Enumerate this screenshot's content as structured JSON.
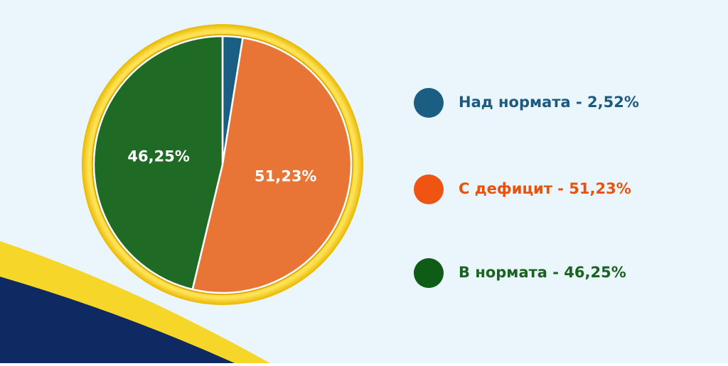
{
  "chart_data": {
    "type": "pie",
    "categories": [
      "Над нормата - 2,52%",
      "С дефицит - 51,23%",
      "В нормата - 46,25%"
    ],
    "values": [
      2.52,
      51.23,
      46.25
    ],
    "value_labels": [
      null,
      "51,23%",
      "46,25%"
    ],
    "colors": [
      "#1b5e84",
      "#e87535",
      "#1f6b26"
    ],
    "legend_colors": [
      "#1b5e84",
      "#ef5412",
      "#0f5c17"
    ],
    "legend_text_colors": [
      "#1c5a80",
      "#e8520c",
      "#1a6320"
    ]
  }
}
